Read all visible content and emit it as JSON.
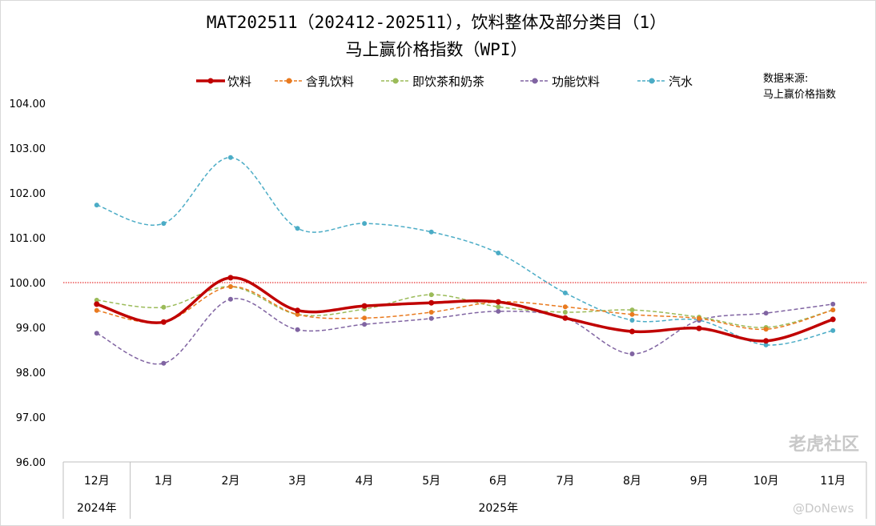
{
  "chart_data": {
    "type": "line",
    "title": "MAT202511（202412-202511），饮料整体及部分类目（1）",
    "subtitle": "马上赢价格指数（WPI）",
    "source_label": "数据来源:",
    "source_value": "马上赢价格指数",
    "categories": [
      "12月",
      "1月",
      "2月",
      "3月",
      "4月",
      "5月",
      "6月",
      "7月",
      "8月",
      "9月",
      "10月",
      "11月"
    ],
    "year_groups": [
      {
        "label": "2024年",
        "span": 1
      },
      {
        "label": "2025年",
        "span": 11
      }
    ],
    "y_ticks": [
      "104.00",
      "103.00",
      "102.00",
      "101.00",
      "100.00",
      "99.00",
      "98.00",
      "97.00",
      "96.00"
    ],
    "ylim": [
      96,
      104
    ],
    "reference_line": 100,
    "reference_color": "#e00000",
    "grid": false,
    "legend_position": "top",
    "series": [
      {
        "name": "饮料",
        "color": "#c00000",
        "style": "solid",
        "values": [
          99.52,
          99.12,
          100.11,
          99.38,
          99.48,
          99.55,
          99.57,
          99.21,
          98.91,
          98.98,
          98.7,
          99.18
        ]
      },
      {
        "name": "含乳饮料",
        "color": "#e97a1f",
        "style": "dashed",
        "values": [
          99.38,
          99.12,
          99.91,
          99.29,
          99.21,
          99.34,
          99.57,
          99.46,
          99.29,
          99.2,
          98.96,
          99.39
        ]
      },
      {
        "name": "即饮茶和奶茶",
        "color": "#9bbb59",
        "style": "dashed",
        "values": [
          99.61,
          99.45,
          99.91,
          99.29,
          99.41,
          99.73,
          99.46,
          99.34,
          99.39,
          99.23,
          99.0,
          99.39
        ]
      },
      {
        "name": "功能饮料",
        "color": "#8064a2",
        "style": "dashed",
        "values": [
          98.87,
          98.2,
          99.63,
          98.95,
          99.07,
          99.2,
          99.36,
          99.21,
          98.41,
          99.16,
          99.32,
          99.52
        ]
      },
      {
        "name": "汽水",
        "color": "#4bacc6",
        "style": "dashed",
        "values": [
          101.73,
          101.32,
          102.79,
          101.21,
          101.32,
          101.13,
          100.66,
          99.77,
          99.16,
          99.16,
          98.61,
          98.93
        ]
      }
    ]
  },
  "watermarks": {
    "brand": "老虎社区",
    "handle": "@DoNews"
  }
}
